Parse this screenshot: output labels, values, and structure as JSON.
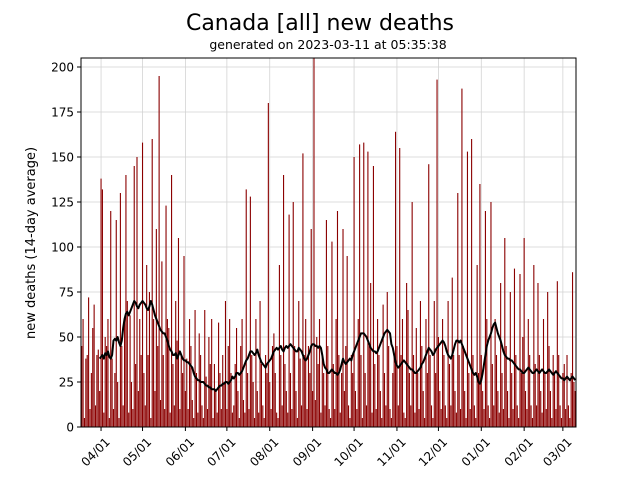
{
  "chart_data": {
    "type": "bar",
    "title": "Canada [all] new deaths",
    "subtitle": "generated on 2023-03-11 at 05:35:38",
    "y_label": "new deaths (14-day average)",
    "categories": [
      null,
      null,
      null,
      null,
      null,
      null,
      null,
      null,
      null,
      null,
      null,
      null,
      null,
      null,
      "04/01",
      null,
      null,
      null,
      null,
      null,
      null,
      null,
      null,
      null,
      null,
      null,
      null,
      null,
      null,
      null,
      null,
      null,
      null,
      null,
      null,
      null,
      null,
      null,
      null,
      null,
      null,
      null,
      null,
      null,
      "05/01",
      null,
      null,
      null,
      null,
      null,
      null,
      null,
      null,
      null,
      null,
      null,
      null,
      null,
      null,
      null,
      null,
      null,
      null,
      null,
      null,
      null,
      null,
      null,
      null,
      null,
      null,
      null,
      null,
      null,
      null,
      "06/01",
      null,
      null,
      null,
      null,
      null,
      null,
      null,
      null,
      null,
      null,
      null,
      null,
      null,
      null,
      null,
      null,
      null,
      null,
      null,
      null,
      null,
      null,
      null,
      null,
      null,
      null,
      null,
      null,
      null,
      "07/01",
      null,
      null,
      null,
      null,
      null,
      null,
      null,
      null,
      null,
      null,
      null,
      null,
      null,
      null,
      null,
      null,
      null,
      null,
      null,
      null,
      null,
      null,
      null,
      null,
      null,
      null,
      null,
      null,
      null,
      null,
      "08/01",
      null,
      null,
      null,
      null,
      null,
      null,
      null,
      null,
      null,
      null,
      null,
      null,
      null,
      null,
      null,
      null,
      null,
      null,
      null,
      null,
      null,
      null,
      null,
      null,
      null,
      null,
      null,
      null,
      null,
      null,
      "09/01",
      null,
      null,
      null,
      null,
      null,
      null,
      null,
      null,
      null,
      null,
      null,
      null,
      null,
      null,
      null,
      null,
      null,
      null,
      null,
      null,
      null,
      null,
      null,
      null,
      null,
      null,
      null,
      null,
      null,
      "10/01",
      null,
      null,
      null,
      null,
      null,
      null,
      null,
      null,
      null,
      null,
      null,
      null,
      null,
      null,
      null,
      null,
      null,
      null,
      null,
      null,
      null,
      null,
      null,
      null,
      null,
      null,
      null,
      null,
      null,
      null,
      "11/01",
      null,
      null,
      null,
      null,
      null,
      null,
      null,
      null,
      null,
      null,
      null,
      null,
      null,
      null,
      null,
      null,
      null,
      null,
      null,
      null,
      null,
      null,
      null,
      null,
      null,
      null,
      null,
      null,
      null,
      "12/01",
      null,
      null,
      null,
      null,
      null,
      null,
      null,
      null,
      null,
      null,
      null,
      null,
      null,
      null,
      null,
      null,
      null,
      null,
      null,
      null,
      null,
      null,
      null,
      null,
      null,
      null,
      null,
      null,
      null,
      null,
      "01/01",
      null,
      null,
      null,
      null,
      null,
      null,
      null,
      null,
      null,
      null,
      null,
      null,
      null,
      null,
      null,
      null,
      null,
      null,
      null,
      null,
      null,
      null,
      null,
      null,
      null,
      null,
      null,
      null,
      null,
      null,
      "02/01",
      null,
      null,
      null,
      null,
      null,
      null,
      null,
      null,
      null,
      null,
      null,
      null,
      null,
      null,
      null,
      null,
      null,
      null,
      null,
      null,
      null,
      null,
      null,
      null,
      null,
      null,
      null,
      "03/01",
      null,
      null,
      null,
      null,
      null,
      null,
      null,
      null,
      null
    ],
    "series": [
      {
        "type": "bar",
        "color": "#8b0000",
        "values": [
          45,
          60,
          5,
          38,
          40,
          72,
          10,
          30,
          55,
          68,
          12,
          40,
          43,
          20,
          138,
          132,
          8,
          50,
          45,
          60,
          5,
          120,
          38,
          10,
          30,
          115,
          25,
          5,
          130,
          45,
          12,
          60,
          140,
          70,
          8,
          62,
          25,
          10,
          145,
          35,
          150,
          20,
          60,
          40,
          158,
          30,
          12,
          90,
          40,
          75,
          5,
          160,
          60,
          20,
          110,
          45,
          195,
          15,
          92,
          40,
          10,
          123,
          60,
          55,
          8,
          140,
          35,
          12,
          70,
          48,
          105,
          10,
          40,
          30,
          95,
          20,
          38,
          10,
          60,
          45,
          15,
          5,
          65,
          30,
          8,
          52,
          40,
          12,
          5,
          65,
          28,
          10,
          50,
          35,
          60,
          5,
          35,
          20,
          8,
          58,
          30,
          10,
          40,
          25,
          70,
          10,
          45,
          60,
          30,
          8,
          12,
          35,
          55,
          20,
          5,
          45,
          60,
          15,
          8,
          132,
          30,
          10,
          128,
          40,
          25,
          5,
          60,
          20,
          8,
          70,
          35,
          12,
          5,
          40,
          30,
          180,
          25,
          10,
          45,
          52,
          30,
          8,
          5,
          90,
          40,
          12,
          140,
          35,
          20,
          8,
          118,
          30,
          10,
          125,
          45,
          20,
          5,
          70,
          38,
          12,
          152,
          40,
          60,
          10,
          45,
          30,
          110,
          20,
          205,
          15,
          50,
          35,
          60,
          8,
          40,
          30,
          12,
          115,
          45,
          10,
          5,
          103,
          35,
          10,
          60,
          120,
          40,
          8,
          30,
          110,
          20,
          45,
          95,
          12,
          5,
          40,
          30,
          150,
          20,
          10,
          60,
          157,
          40,
          5,
          158,
          30,
          12,
          153,
          45,
          80,
          8,
          145,
          35,
          10,
          60,
          40,
          20,
          5,
          68,
          30,
          12,
          75,
          45,
          10,
          5,
          30,
          40,
          164,
          45,
          12,
          155,
          40,
          60,
          8,
          5,
          80,
          65,
          30,
          12,
          125,
          40,
          8,
          55,
          30,
          10,
          70,
          45,
          20,
          5,
          60,
          30,
          146,
          40,
          12,
          5,
          70,
          30,
          193,
          50,
          20,
          10,
          60,
          40,
          12,
          5,
          70,
          35,
          12,
          83,
          40,
          20,
          8,
          130,
          40,
          10,
          188,
          45,
          20,
          5,
          153,
          30,
          10,
          160,
          40,
          12,
          5,
          90,
          30,
          135,
          40,
          20,
          10,
          120,
          60,
          12,
          5,
          125,
          35,
          12,
          60,
          40,
          20,
          8,
          80,
          30,
          10,
          105,
          45,
          20,
          5,
          75,
          30,
          10,
          88,
          40,
          12,
          5,
          85,
          30,
          50,
          105,
          20,
          10,
          60,
          40,
          12,
          5,
          90,
          35,
          12,
          80,
          40,
          20,
          8,
          60,
          30,
          10,
          75,
          45,
          20,
          5,
          40,
          30,
          10,
          81,
          40,
          12,
          5,
          30,
          35,
          10,
          40,
          12,
          5,
          30,
          86,
          25,
          20
        ]
      },
      {
        "type": "line",
        "color": "#000000",
        "values": [
          null,
          null,
          null,
          null,
          null,
          null,
          null,
          null,
          null,
          null,
          null,
          null,
          null,
          38,
          39,
          40,
          38,
          41,
          40,
          42,
          39,
          38,
          40,
          48,
          49,
          48,
          50,
          47,
          45,
          48,
          55,
          60,
          63,
          64,
          62,
          64,
          66,
          68,
          70,
          69,
          67,
          66,
          68,
          69,
          70,
          69,
          68,
          66,
          65,
          67,
          70,
          68,
          65,
          62,
          60,
          58,
          56,
          54,
          53,
          52,
          52,
          50,
          48,
          45,
          43,
          42,
          40,
          40,
          41,
          38,
          40,
          42,
          40,
          38,
          37,
          37,
          36,
          36,
          35,
          34,
          33,
          30,
          28,
          27,
          26,
          26,
          25,
          25,
          25,
          24,
          23,
          23,
          22,
          22,
          21,
          21,
          21,
          20,
          21,
          22,
          23,
          23,
          24,
          24,
          25,
          25,
          24,
          25,
          26,
          28,
          27,
          28,
          30,
          30,
          29,
          30,
          31,
          33,
          35,
          37,
          38,
          40,
          42,
          42,
          41,
          40,
          41,
          43,
          40,
          38,
          36,
          35,
          34,
          33,
          35,
          36,
          37,
          38,
          40,
          42,
          43,
          44,
          43,
          44,
          45,
          43,
          42,
          44,
          45,
          44,
          45,
          46,
          45,
          44,
          43,
          42,
          42,
          44,
          43,
          42,
          40,
          38,
          37,
          38,
          40,
          42,
          45,
          46,
          46,
          45,
          45,
          44,
          45,
          44,
          40,
          35,
          33,
          32,
          30,
          30,
          31,
          32,
          31,
          30,
          30,
          29,
          30,
          32,
          35,
          38,
          36,
          35,
          36,
          37,
          38,
          37,
          40,
          42,
          44,
          46,
          48,
          50,
          52,
          52,
          52,
          51,
          50,
          48,
          46,
          44,
          43,
          42,
          42,
          41,
          42,
          44,
          46,
          48,
          50,
          52,
          53,
          54,
          53,
          52,
          46,
          44,
          40,
          36,
          34,
          33,
          34,
          35,
          36,
          37,
          36,
          35,
          34,
          33,
          32,
          32,
          31,
          30,
          30,
          31,
          32,
          33,
          35,
          36,
          38,
          40,
          42,
          44,
          43,
          42,
          40,
          41,
          43,
          44,
          45,
          46,
          47,
          48,
          47,
          45,
          42,
          40,
          39,
          38,
          40,
          43,
          46,
          48,
          48,
          47,
          48,
          46,
          44,
          42,
          40,
          38,
          36,
          34,
          32,
          30,
          29,
          30,
          28,
          25,
          24,
          26,
          30,
          35,
          40,
          45,
          48,
          50,
          52,
          55,
          57,
          58,
          55,
          52,
          50,
          48,
          45,
          42,
          40,
          39,
          38,
          38,
          37,
          37,
          36,
          35,
          34,
          33,
          32,
          32,
          31,
          30,
          30,
          31,
          32,
          33,
          32,
          31,
          30,
          30,
          31,
          32,
          31,
          30,
          31,
          32,
          31,
          30,
          30,
          31,
          32,
          31,
          30,
          29,
          30,
          31,
          30,
          29,
          28,
          27,
          27,
          26,
          27,
          28,
          27,
          26,
          27,
          28,
          27,
          26
        ]
      }
    ],
    "ylim": [
      0,
      205
    ],
    "yticks": [
      0,
      25,
      50,
      75,
      100,
      125,
      150,
      175,
      200
    ],
    "grid": true
  }
}
